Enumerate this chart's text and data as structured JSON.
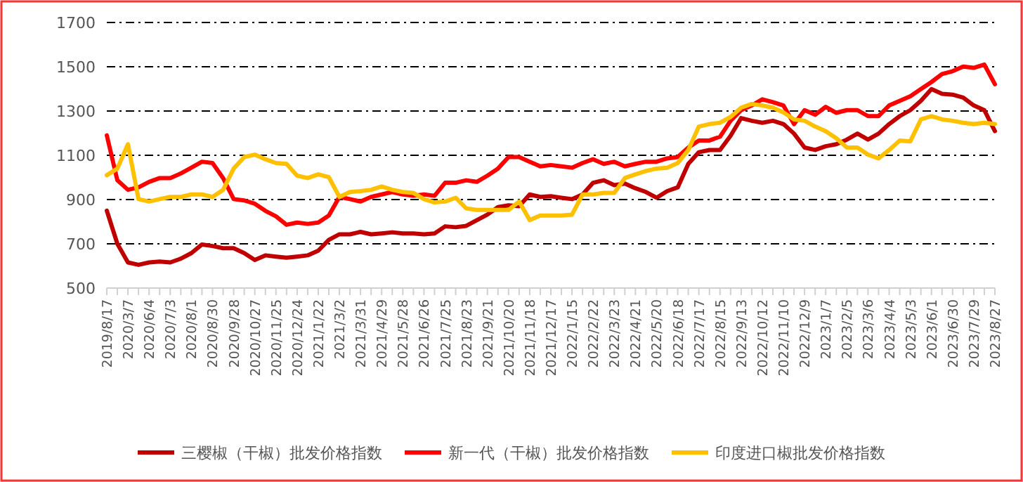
{
  "chart_data": {
    "type": "line",
    "categories": [
      "2019/8/17",
      null,
      "2020/3/7",
      null,
      "2020/6/4",
      null,
      "2020/7/3",
      null,
      "2020/8/1",
      null,
      "2020/8/30",
      null,
      "2020/9/28",
      null,
      "2020/10/27",
      null,
      "2020/11/25",
      null,
      "2020/12/24",
      null,
      "2021/1/22",
      null,
      "2021/3/2",
      null,
      "2021/3/31",
      null,
      "2021/4/29",
      null,
      "2021/5/28",
      null,
      "2021/6/26",
      null,
      "2021/7/25",
      null,
      "2021/8/23",
      null,
      "2021/9/21",
      null,
      "2021/10/20",
      null,
      "2021/11/18",
      null,
      "2021/12/17",
      null,
      "2022/1/15",
      null,
      "2022/2/22",
      null,
      "2022/3/23",
      null,
      "2022/4/21",
      null,
      "2022/5/20",
      null,
      "2022/6/18",
      null,
      "2022/7/17",
      null,
      "2022/8/15",
      null,
      "2022/9/13",
      null,
      "2022/10/12",
      null,
      "2022/11/10",
      null,
      "2022/12/9",
      null,
      "2023/1/7",
      null,
      "2023/2/5",
      null,
      "2023/3/6",
      null,
      "2023/4/4",
      null,
      "2023/5/3",
      null,
      "2023/6/1",
      null,
      "2023/6/30",
      null,
      "2023/7/29",
      null,
      "2023/8/27"
    ],
    "series": [
      {
        "name": "三樱椒（干椒）批发价格指数",
        "color": "#c00000",
        "values": [
          850,
          700,
          616,
          605,
          616,
          620,
          616,
          633,
          658,
          697,
          690,
          680,
          680,
          658,
          627,
          648,
          642,
          637,
          642,
          648,
          669,
          718,
          743,
          743,
          754,
          743,
          747,
          752,
          747,
          747,
          743,
          747,
          779,
          775,
          781,
          807,
          832,
          866,
          874,
          870,
          923,
          912,
          915,
          908,
          902,
          923,
          976,
          987,
          965,
          972,
          951,
          934,
          908,
          938,
          955,
          1061,
          1114,
          1124,
          1124,
          1188,
          1268,
          1256,
          1247,
          1256,
          1241,
          1198,
          1135,
          1124,
          1141,
          1150,
          1171,
          1198,
          1171,
          1198,
          1241,
          1277,
          1304,
          1346,
          1399,
          1378,
          1374,
          1361,
          1325,
          1304,
          1209
        ]
      },
      {
        "name": "新一代（干椒）批发价格指数",
        "color": "#ff0000",
        "values": [
          1190,
          987,
          944,
          955,
          980,
          997,
          997,
          1018,
          1044,
          1071,
          1065,
          997,
          902,
          896,
          881,
          849,
          824,
          786,
          796,
          790,
          796,
          828,
          912,
          902,
          891,
          912,
          923,
          934,
          923,
          917,
          923,
          917,
          976,
          976,
          987,
          980,
          1008,
          1040,
          1092,
          1092,
          1071,
          1050,
          1056,
          1050,
          1044,
          1065,
          1082,
          1061,
          1071,
          1050,
          1061,
          1071,
          1071,
          1086,
          1092,
          1135,
          1167,
          1167,
          1184,
          1256,
          1304,
          1325,
          1353,
          1340,
          1325,
          1241,
          1304,
          1283,
          1319,
          1292,
          1304,
          1304,
          1277,
          1277,
          1325,
          1346,
          1367,
          1399,
          1431,
          1467,
          1480,
          1501,
          1495,
          1510,
          1421
        ]
      },
      {
        "name": "印度进口椒批发价格指数",
        "color": "#ffc000",
        "values": [
          1010,
          1040,
          1150,
          902,
          891,
          902,
          912,
          912,
          923,
          923,
          912,
          944,
          1040,
          1092,
          1103,
          1082,
          1065,
          1061,
          1008,
          997,
          1014,
          1001,
          912,
          934,
          938,
          944,
          959,
          944,
          934,
          930,
          902,
          887,
          891,
          908,
          860,
          853,
          853,
          853,
          853,
          891,
          807,
          828,
          828,
          828,
          832,
          923,
          923,
          930,
          930,
          997,
          1014,
          1029,
          1040,
          1044,
          1065,
          1124,
          1230,
          1241,
          1247,
          1273,
          1315,
          1332,
          1325,
          1315,
          1294,
          1262,
          1256,
          1230,
          1209,
          1177,
          1135,
          1135,
          1103,
          1086,
          1124,
          1167,
          1163,
          1262,
          1277,
          1262,
          1256,
          1247,
          1241,
          1247,
          1241
        ]
      }
    ],
    "ylim": [
      500,
      1700
    ],
    "yticks": [
      500,
      700,
      900,
      1100,
      1300,
      1500,
      1700
    ],
    "grid": "y",
    "legend": "bottom",
    "line_style": "solid",
    "marker": "none"
  }
}
